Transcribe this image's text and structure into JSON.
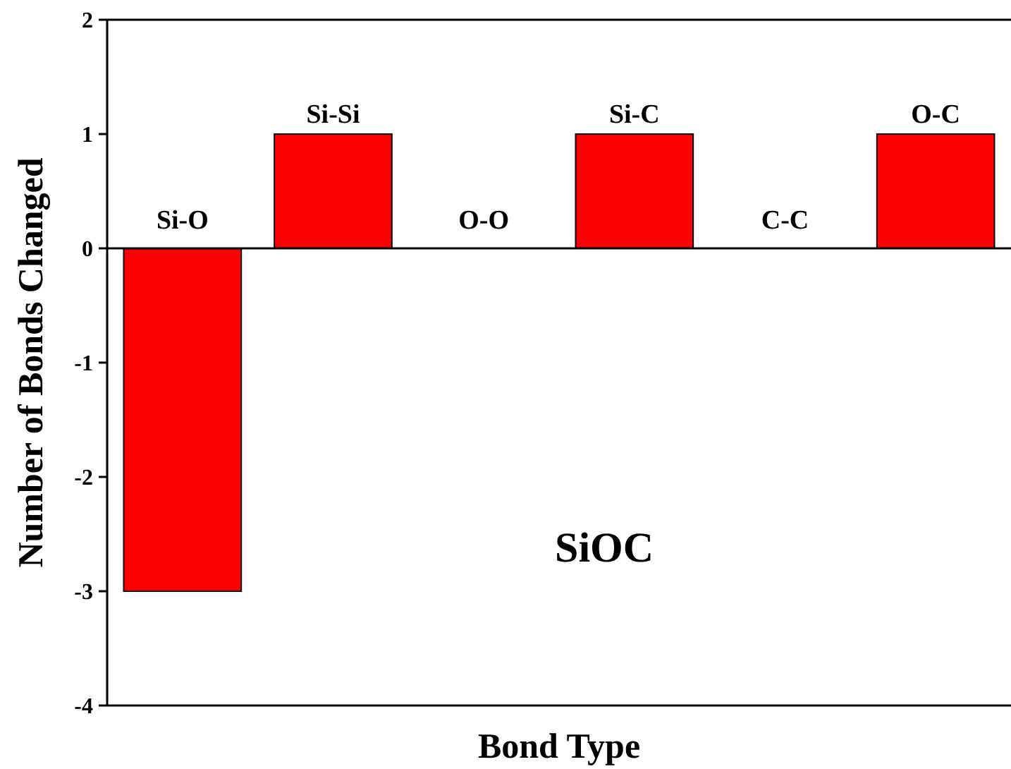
{
  "chart_data": {
    "type": "bar",
    "xlabel": "Bond Type",
    "ylabel": "Number of Bonds Changed",
    "categories": [
      "Si-O",
      "Si-Si",
      "O-O",
      "Si-C",
      "C-C",
      "O-C"
    ],
    "values": [
      -3,
      1,
      0,
      1,
      0,
      1
    ],
    "color": "#ff0000",
    "ylim": [
      -4,
      2
    ],
    "yticks": [
      -4,
      -3,
      -2,
      -1,
      0,
      1,
      2
    ],
    "annotations": [
      "SiOC"
    ]
  }
}
